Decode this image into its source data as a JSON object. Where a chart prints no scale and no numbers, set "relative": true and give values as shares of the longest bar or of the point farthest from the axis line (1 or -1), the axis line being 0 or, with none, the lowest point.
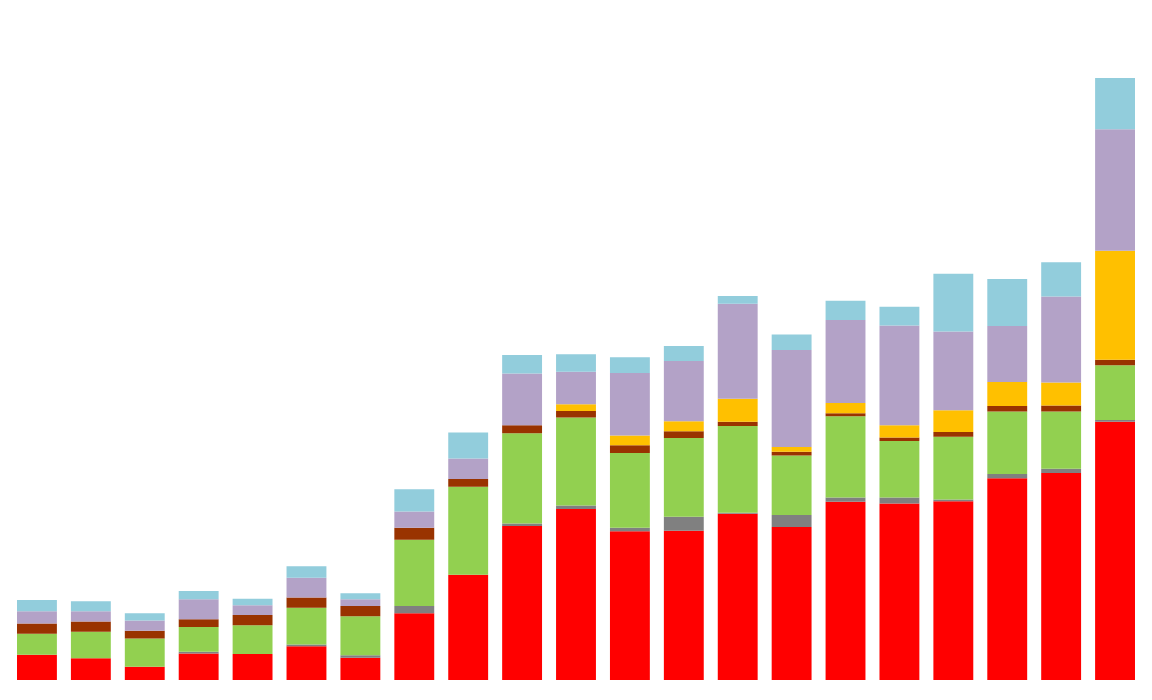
{
  "chart_data": {
    "type": "bar",
    "stacked": true,
    "relative": true,
    "categories": [
      null,
      null,
      null,
      null,
      null,
      null,
      null,
      null,
      null,
      null,
      null,
      null,
      null,
      null,
      null,
      null,
      null,
      null,
      null,
      null,
      null
    ],
    "series": [
      {
        "color": "#ff0000",
        "values": [
          0.042,
          0.036,
          0.022,
          0.044,
          0.043,
          0.056,
          0.037,
          0.111,
          0.175,
          0.256,
          0.284,
          0.247,
          0.248,
          0.276,
          0.254,
          0.296,
          0.293,
          0.297,
          0.335,
          0.344,
          0.429
        ]
      },
      {
        "color": "#808080",
        "values": [
          0,
          0,
          0,
          0.003,
          0,
          0.003,
          0.004,
          0.012,
          0,
          0.004,
          0.006,
          0.006,
          0.023,
          0.002,
          0.02,
          0.007,
          0.01,
          0.003,
          0.007,
          0.007,
          0.003
        ]
      },
      {
        "color": "#92d050",
        "values": [
          0.035,
          0.044,
          0.047,
          0.041,
          0.048,
          0.061,
          0.065,
          0.11,
          0.146,
          0.15,
          0.146,
          0.124,
          0.131,
          0.144,
          0.099,
          0.135,
          0.094,
          0.104,
          0.104,
          0.095,
          0.091
        ]
      },
      {
        "color": "#993300",
        "values": [
          0.017,
          0.017,
          0.013,
          0.013,
          0.017,
          0.017,
          0.017,
          0.02,
          0.013,
          0.013,
          0.011,
          0.013,
          0.011,
          0.007,
          0.006,
          0.005,
          0.006,
          0.008,
          0.009,
          0.01,
          0.009
        ]
      },
      {
        "color": "#ffc000",
        "values": [
          0,
          0,
          0,
          0,
          0,
          0,
          0,
          0,
          0,
          0,
          0.011,
          0.016,
          0.017,
          0.038,
          0.008,
          0.017,
          0.02,
          0.036,
          0.04,
          0.038,
          0.181
        ]
      },
      {
        "color": "#b3a2c7",
        "values": [
          0.02,
          0.017,
          0.017,
          0.033,
          0.016,
          0.033,
          0.011,
          0.027,
          0.034,
          0.086,
          0.054,
          0.104,
          0.1,
          0.158,
          0.161,
          0.138,
          0.166,
          0.131,
          0.093,
          0.143,
          0.202
        ]
      },
      {
        "color": "#92cddc",
        "values": [
          0.019,
          0.017,
          0.012,
          0.014,
          0.011,
          0.019,
          0.01,
          0.037,
          0.043,
          0.031,
          0.029,
          0.026,
          0.025,
          0.013,
          0.026,
          0.032,
          0.031,
          0.096,
          0.078,
          0.057,
          0.085
        ]
      }
    ]
  }
}
